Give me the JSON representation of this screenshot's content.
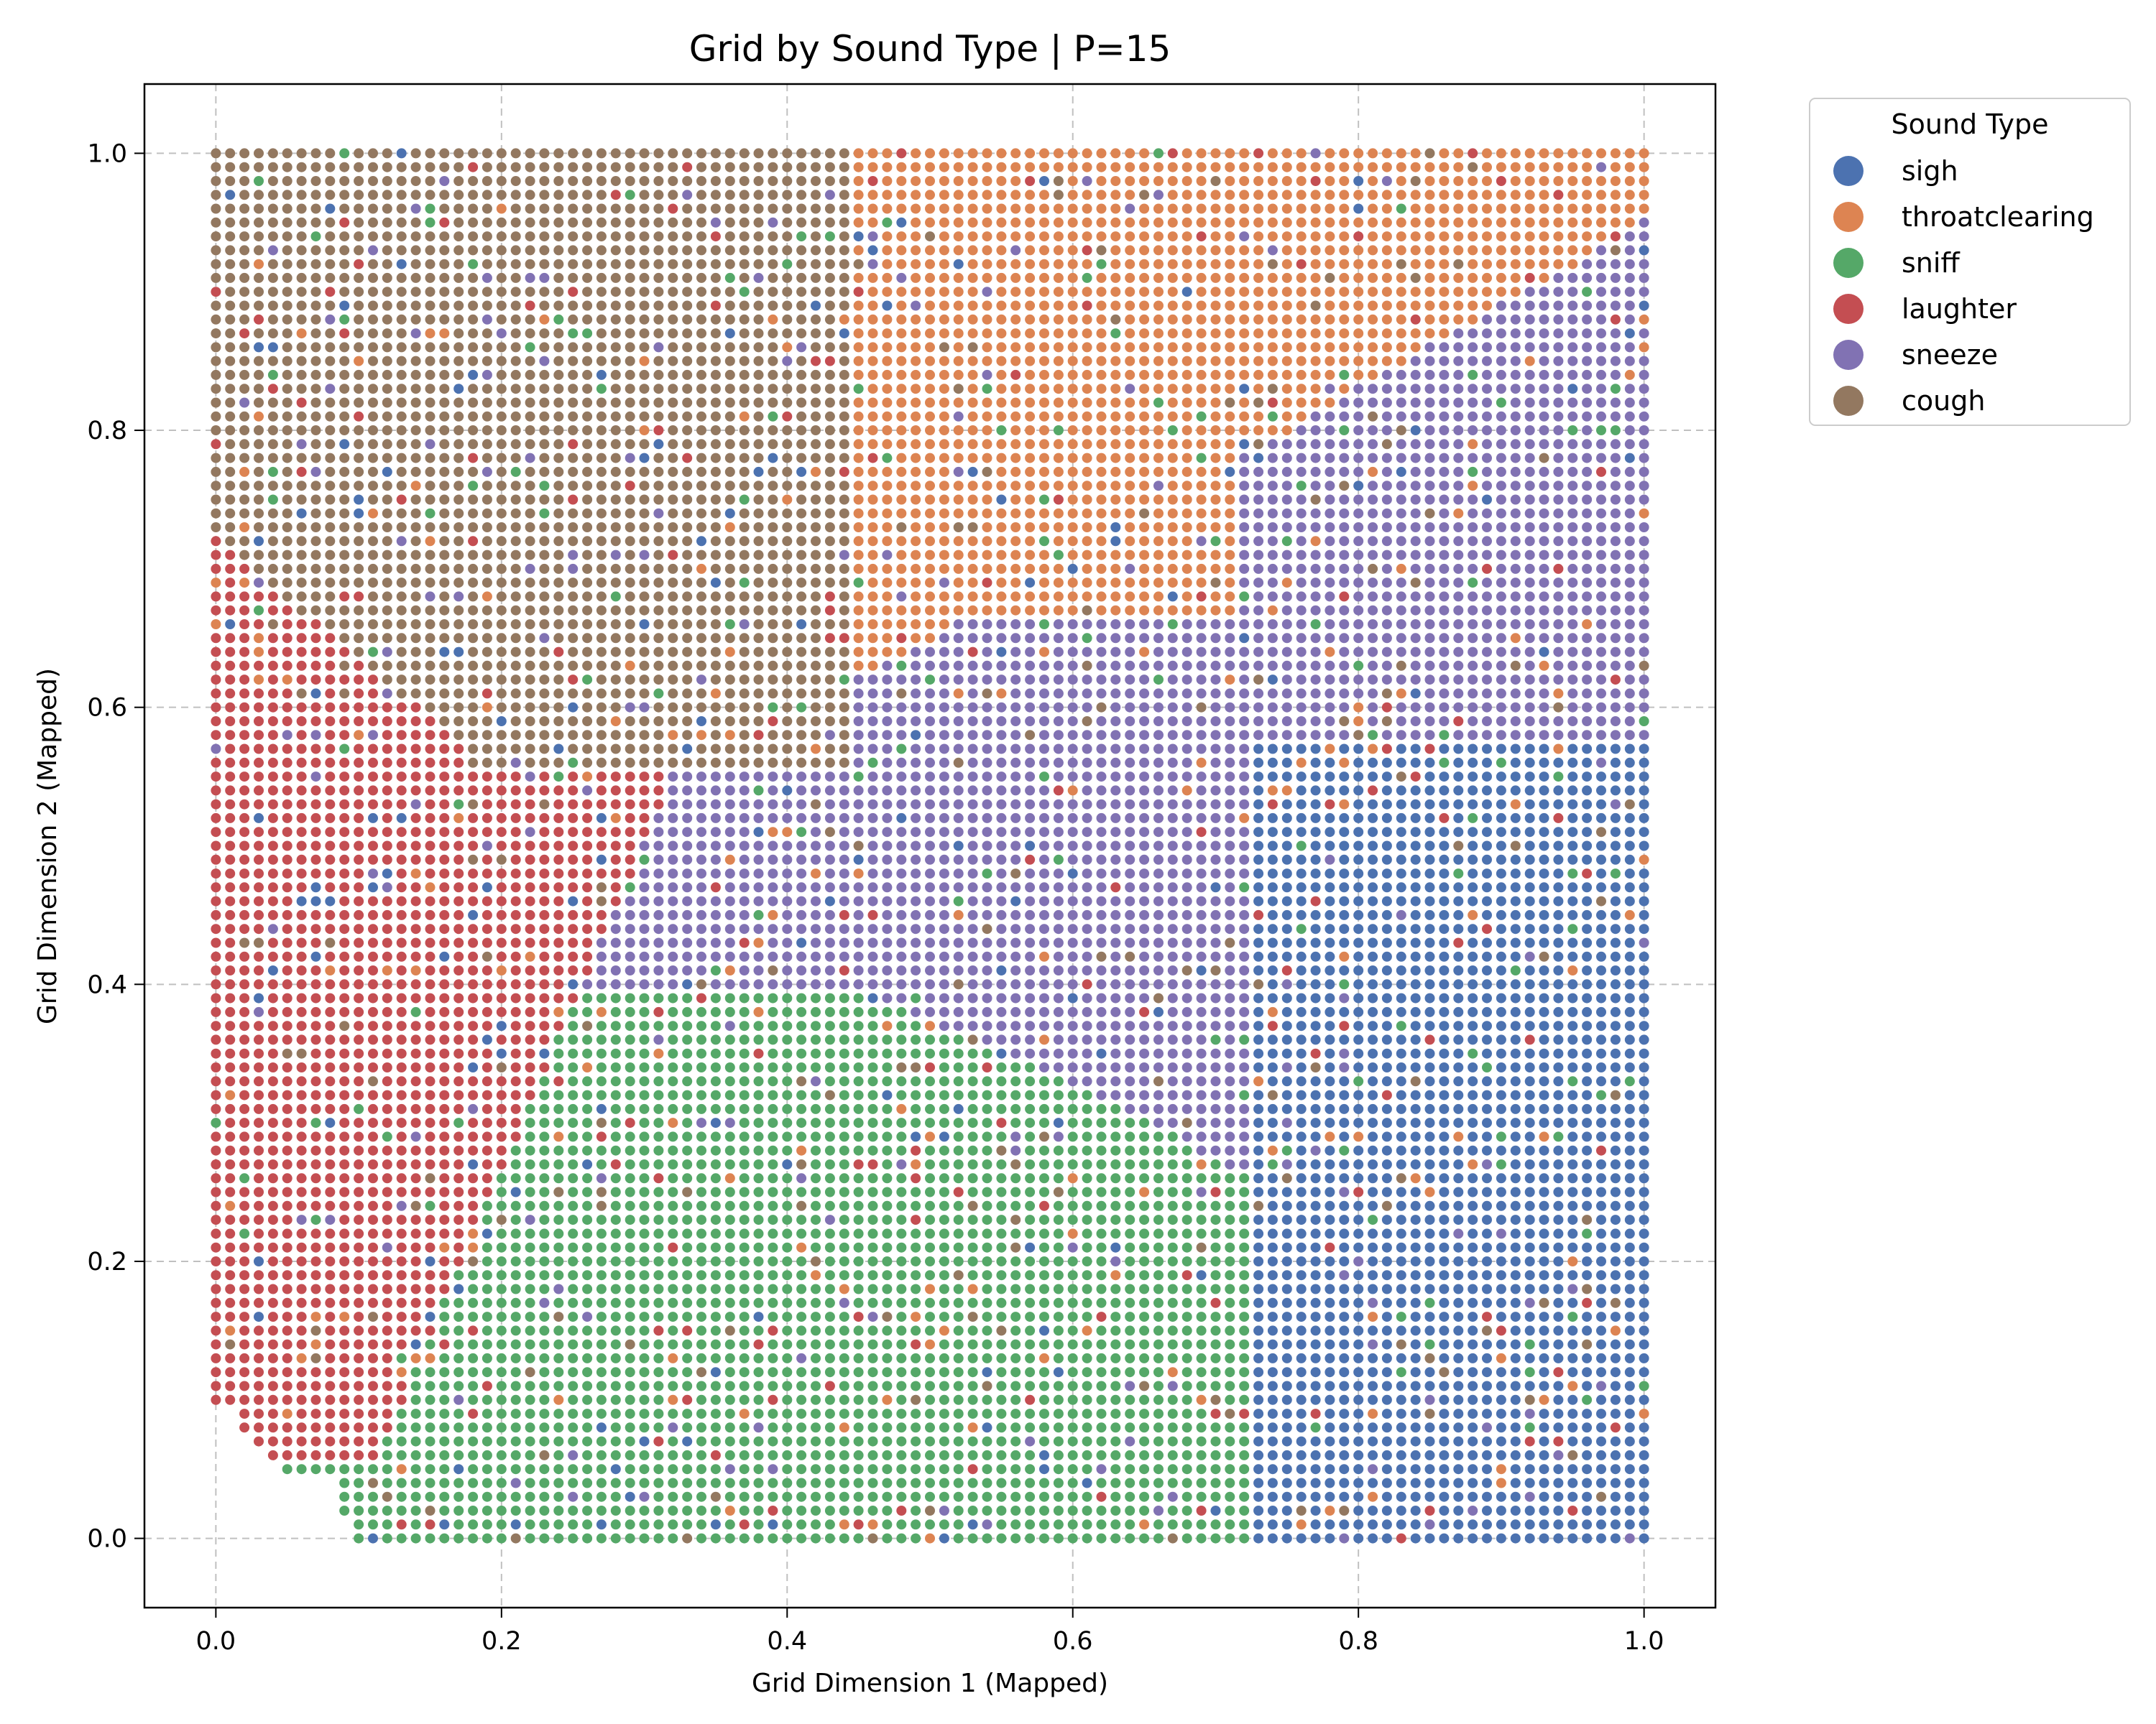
{
  "chart_data": {
    "type": "scatter",
    "title": "Grid by Sound Type | P=15",
    "xlabel": "Grid Dimension 1 (Mapped)",
    "ylabel": "Grid Dimension 2 (Mapped)",
    "xlim": [
      -0.05,
      1.05
    ],
    "ylim": [
      -0.05,
      1.05
    ],
    "xticks": [
      0.0,
      0.2,
      0.4,
      0.6,
      0.8,
      1.0
    ],
    "yticks": [
      0.0,
      0.2,
      0.4,
      0.6,
      0.8,
      1.0
    ],
    "xtick_labels": [
      "0.0",
      "0.2",
      "0.4",
      "0.6",
      "0.8",
      "1.0"
    ],
    "ytick_labels": [
      "0.0",
      "0.2",
      "0.4",
      "0.6",
      "0.8",
      "1.0"
    ],
    "grid": true,
    "grid_style": "dashed",
    "legend": {
      "title": "Sound Type",
      "placement": "outside upper right"
    },
    "grid_resolution": 100,
    "series": [
      {
        "name": "sigh",
        "color": "#4c72b0"
      },
      {
        "name": "throatclearing",
        "color": "#dd8452"
      },
      {
        "name": "sniff",
        "color": "#55a868"
      },
      {
        "name": "laughter",
        "color": "#c44e52"
      },
      {
        "name": "sneeze",
        "color": "#8172b3"
      },
      {
        "name": "cough",
        "color": "#937860"
      }
    ],
    "regions": [
      {
        "series": "cough",
        "description": "upper-left",
        "x_range": [
          0.0,
          0.45
        ],
        "y_range": [
          0.55,
          1.0
        ]
      },
      {
        "series": "throatclearing",
        "description": "upper-right",
        "x_range": [
          0.45,
          1.0
        ],
        "y_range": [
          0.6,
          1.0
        ]
      },
      {
        "series": "laughter",
        "description": "left",
        "x_range": [
          0.0,
          0.4
        ],
        "y_range": [
          0.05,
          0.72
        ]
      },
      {
        "series": "sneeze",
        "description": "center-right",
        "x_range": [
          0.4,
          1.0
        ],
        "y_range": [
          0.3,
          0.9
        ]
      },
      {
        "series": "sniff",
        "description": "bottom-center",
        "x_range": [
          0.09,
          0.73
        ],
        "y_range": [
          0.0,
          0.4
        ]
      },
      {
        "series": "sigh",
        "description": "bottom-right",
        "x_range": [
          0.73,
          1.0
        ],
        "y_range": [
          0.0,
          0.6
        ]
      }
    ]
  }
}
